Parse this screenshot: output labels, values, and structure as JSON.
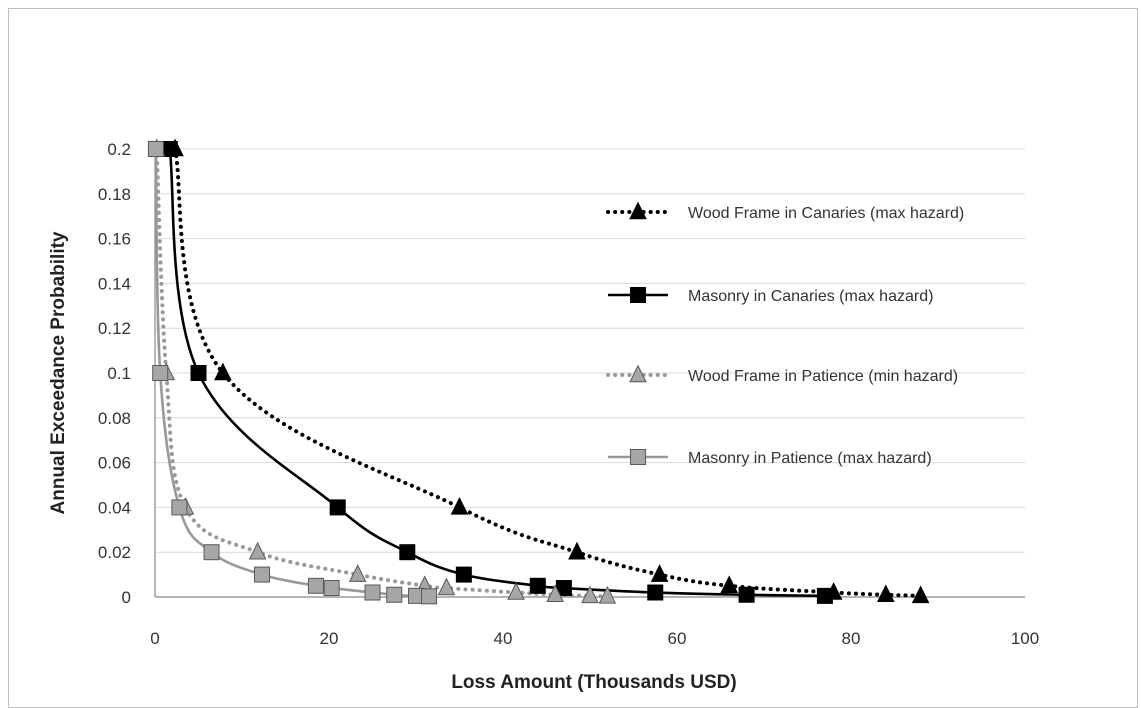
{
  "chart_data": {
    "type": "line",
    "title": "",
    "xlabel": "Loss Amount (Thousands USD)",
    "ylabel": "Annual Exceedance Probability",
    "xlim": [
      0,
      100
    ],
    "ylim": [
      0,
      0.2
    ],
    "x_ticks": [
      "0",
      "20",
      "40",
      "60",
      "80",
      "100"
    ],
    "y_ticks": [
      "0",
      "0.02",
      "0.04",
      "0.06",
      "0.08",
      "0.1",
      "0.12",
      "0.14",
      "0.16",
      "0.18",
      "0.2"
    ],
    "grid": "horizontal",
    "legend_position": "right",
    "series": [
      {
        "name": "Wood Frame in Canaries (max hazard)",
        "marker": "triangle",
        "line_style": "dotted",
        "color": "#000000",
        "marker_fill": "#000000",
        "x": [
          2.3,
          7.8,
          35.0,
          48.5,
          58.0,
          66.0,
          78.0,
          84.0,
          88.0
        ],
        "y": [
          0.2,
          0.1,
          0.04,
          0.02,
          0.01,
          0.005,
          0.002,
          0.001,
          0.0005
        ]
      },
      {
        "name": "Masonry in Canaries (max hazard)",
        "marker": "square",
        "line_style": "solid",
        "color": "#000000",
        "marker_fill": "#000000",
        "x": [
          1.7,
          5.0,
          21.0,
          29.0,
          35.5,
          44.0,
          47.0,
          57.5,
          68.0,
          77.0
        ],
        "y": [
          0.2,
          0.1,
          0.04,
          0.02,
          0.01,
          0.005,
          0.004,
          0.002,
          0.001,
          0.0005
        ]
      },
      {
        "name": "Wood Frame in Patience (min hazard)",
        "marker": "triangle",
        "line_style": "dotted",
        "color": "#999999",
        "marker_fill": "#a6a6a6",
        "x": [
          0.2,
          1.3,
          3.5,
          11.8,
          23.3,
          31.0,
          33.5,
          41.5,
          46.0,
          50.0,
          52.0
        ],
        "y": [
          0.2,
          0.1,
          0.04,
          0.02,
          0.01,
          0.005,
          0.004,
          0.002,
          0.001,
          0.0005,
          0.0003
        ]
      },
      {
        "name": "Masonry in Patience (max hazard)",
        "marker": "square",
        "line_style": "solid",
        "color": "#999999",
        "marker_fill": "#a6a6a6",
        "x": [
          0.1,
          0.6,
          2.8,
          6.5,
          12.3,
          18.5,
          20.3,
          25.0,
          27.5,
          30.0,
          31.5
        ],
        "y": [
          0.2,
          0.1,
          0.04,
          0.02,
          0.01,
          0.005,
          0.004,
          0.002,
          0.001,
          0.0005,
          0.0003
        ]
      }
    ]
  }
}
